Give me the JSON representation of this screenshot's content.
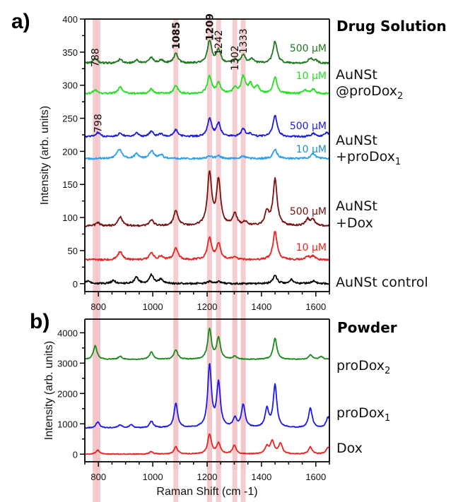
{
  "chart_data": [
    {
      "panel": "a)",
      "type": "line",
      "title": "Drug Solution",
      "xlabel": "",
      "ylabel": "Intensity (arb. units)",
      "xlim": [
        750,
        1650
      ],
      "ylim": [
        -12,
        400
      ],
      "x_ticks": [
        800,
        1000,
        1200,
        1400,
        1600
      ],
      "y_ticks": [
        0,
        50,
        100,
        150,
        200,
        250,
        300,
        350,
        400
      ],
      "highlight_bands": [
        788,
        798,
        1085,
        1209,
        1242,
        1302,
        1333
      ],
      "peak_annotations": [
        {
          "text": "788",
          "x": 788,
          "bold": false
        },
        {
          "text": "798",
          "x": 798,
          "bold": false
        },
        {
          "text": "1085",
          "x": 1085,
          "bold": true
        },
        {
          "text": "1209",
          "x": 1209,
          "bold": true
        },
        {
          "text": "1242",
          "x": 1242,
          "bold": false
        },
        {
          "text": "1302",
          "x": 1302,
          "bold": false
        },
        {
          "text": "1333",
          "x": 1333,
          "bold": false
        }
      ],
      "group_labels": [
        {
          "line1": "AuNSt",
          "line2": "@proDox",
          "sub": "2"
        },
        {
          "line1": "AuNSt",
          "line2": "+proDox",
          "sub": "1"
        },
        {
          "line1": "AuNSt",
          "line2": "+Dox",
          "sub": ""
        },
        {
          "line1": "AuNSt control",
          "line2": "",
          "sub": ""
        }
      ],
      "series": [
        {
          "name": "AuNSt@proDox2 500 µM",
          "label": "500 µM",
          "color": "#1e7a1e",
          "baseline": 333,
          "peaks": [
            [
              788,
              8
            ],
            [
              880,
              6
            ],
            [
              940,
              5
            ],
            [
              995,
              9
            ],
            [
              1030,
              5
            ],
            [
              1085,
              15
            ],
            [
              1209,
              34
            ],
            [
              1242,
              20
            ],
            [
              1302,
              5
            ],
            [
              1333,
              12
            ],
            [
              1365,
              6
            ],
            [
              1450,
              33
            ],
            [
              1580,
              7
            ],
            [
              1600,
              4
            ]
          ]
        },
        {
          "name": "AuNSt@proDox2 10 µM",
          "label": "10 µM",
          "color": "#22e022",
          "baseline": 287,
          "peaks": [
            [
              788,
              6
            ],
            [
              880,
              11
            ],
            [
              995,
              7
            ],
            [
              1085,
              12
            ],
            [
              1209,
              26
            ],
            [
              1242,
              16
            ],
            [
              1302,
              8
            ],
            [
              1333,
              26
            ],
            [
              1360,
              14
            ],
            [
              1385,
              10
            ],
            [
              1450,
              25
            ],
            [
              1560,
              5
            ],
            [
              1590,
              7
            ]
          ]
        },
        {
          "name": "AuNSt+proDox1 500 µM",
          "label": "500 µM",
          "color": "#1a1ae0",
          "baseline": 222,
          "peaks": [
            [
              798,
              6
            ],
            [
              880,
              6
            ],
            [
              940,
              6
            ],
            [
              995,
              8
            ],
            [
              1030,
              4
            ],
            [
              1085,
              10
            ],
            [
              1209,
              27
            ],
            [
              1242,
              20
            ],
            [
              1333,
              12
            ],
            [
              1360,
              4
            ],
            [
              1450,
              32
            ],
            [
              1590,
              5
            ],
            [
              1640,
              6
            ]
          ]
        },
        {
          "name": "AuNSt+proDox1 10 µM",
          "label": "10 µM",
          "color": "#2aa0f0",
          "baseline": 189,
          "peaks": [
            [
              870,
              6
            ],
            [
              880,
              11
            ],
            [
              940,
              7
            ],
            [
              995,
              12
            ],
            [
              1030,
              6
            ],
            [
              1209,
              4
            ],
            [
              1242,
              4
            ],
            [
              1333,
              4
            ],
            [
              1450,
              14
            ],
            [
              1590,
              8
            ]
          ]
        },
        {
          "name": "AuNSt+Dox 500 µM",
          "label": "500 µM",
          "color": "#7a1010",
          "baseline": 87,
          "peaks": [
            [
              798,
              5
            ],
            [
              880,
              14
            ],
            [
              995,
              9
            ],
            [
              1085,
              24
            ],
            [
              1209,
              80
            ],
            [
              1242,
              68
            ],
            [
              1302,
              18
            ],
            [
              1340,
              6
            ],
            [
              1420,
              20
            ],
            [
              1450,
              70
            ],
            [
              1570,
              10
            ],
            [
              1590,
              9
            ]
          ]
        },
        {
          "name": "AuNSt+Dox 10 µM",
          "label": "10 µM",
          "color": "#ee2020",
          "baseline": 36,
          "peaks": [
            [
              880,
              13
            ],
            [
              995,
              10
            ],
            [
              1030,
              5
            ],
            [
              1085,
              19
            ],
            [
              1209,
              33
            ],
            [
              1242,
              24
            ],
            [
              1302,
              4
            ],
            [
              1450,
              43
            ],
            [
              1570,
              5
            ],
            [
              1590,
              5
            ]
          ]
        },
        {
          "name": "AuNSt control",
          "label": "",
          "color": "#000000",
          "baseline": 0,
          "peaks": [
            [
              760,
              4
            ],
            [
              855,
              5
            ],
            [
              940,
              10
            ],
            [
              995,
              13
            ],
            [
              1030,
              7
            ],
            [
              1209,
              3
            ],
            [
              1242,
              3
            ],
            [
              1450,
              12
            ],
            [
              1510,
              6
            ],
            [
              1590,
              4
            ]
          ]
        }
      ]
    },
    {
      "panel": "b)",
      "type": "line",
      "title": "Powder",
      "xlabel": "Raman Shift (cm -1)",
      "ylabel": "Intensity (arb. units)",
      "xlim": [
        750,
        1650
      ],
      "ylim": [
        -250,
        4450
      ],
      "x_ticks": [
        800,
        1000,
        1200,
        1400,
        1600
      ],
      "y_ticks": [
        0,
        1000,
        2000,
        3000,
        4000
      ],
      "highlight_bands": [
        788,
        798,
        1085,
        1209,
        1242,
        1302,
        1333
      ],
      "series": [
        {
          "name": "proDox2",
          "label": "proDox",
          "sub": "2",
          "color": "#1a8a1a",
          "baseline": 3120,
          "peaks": [
            [
              788,
              450
            ],
            [
              880,
              100
            ],
            [
              995,
              250
            ],
            [
              1085,
              320
            ],
            [
              1209,
              1000
            ],
            [
              1242,
              700
            ],
            [
              1302,
              100
            ],
            [
              1450,
              700
            ],
            [
              1580,
              150
            ],
            [
              1620,
              100
            ]
          ]
        },
        {
          "name": "proDox1",
          "label": "proDox",
          "sub": "1",
          "color": "#1a1af0",
          "baseline": 860,
          "peaks": [
            [
              798,
              200
            ],
            [
              880,
              100
            ],
            [
              920,
              100
            ],
            [
              995,
              220
            ],
            [
              1085,
              800
            ],
            [
              1209,
              2050
            ],
            [
              1242,
              1450
            ],
            [
              1302,
              300
            ],
            [
              1333,
              750
            ],
            [
              1420,
              600
            ],
            [
              1450,
              1400
            ],
            [
              1580,
              650
            ],
            [
              1645,
              350
            ]
          ]
        },
        {
          "name": "Dox",
          "label": "Dox",
          "sub": "",
          "color": "#f02020",
          "baseline": 0,
          "peaks": [
            [
              798,
              130
            ],
            [
              995,
              80
            ],
            [
              1085,
              240
            ],
            [
              1209,
              650
            ],
            [
              1242,
              350
            ],
            [
              1300,
              280
            ],
            [
              1420,
              250
            ],
            [
              1440,
              420
            ],
            [
              1470,
              350
            ],
            [
              1580,
              230
            ],
            [
              1645,
              230
            ]
          ]
        }
      ]
    }
  ]
}
